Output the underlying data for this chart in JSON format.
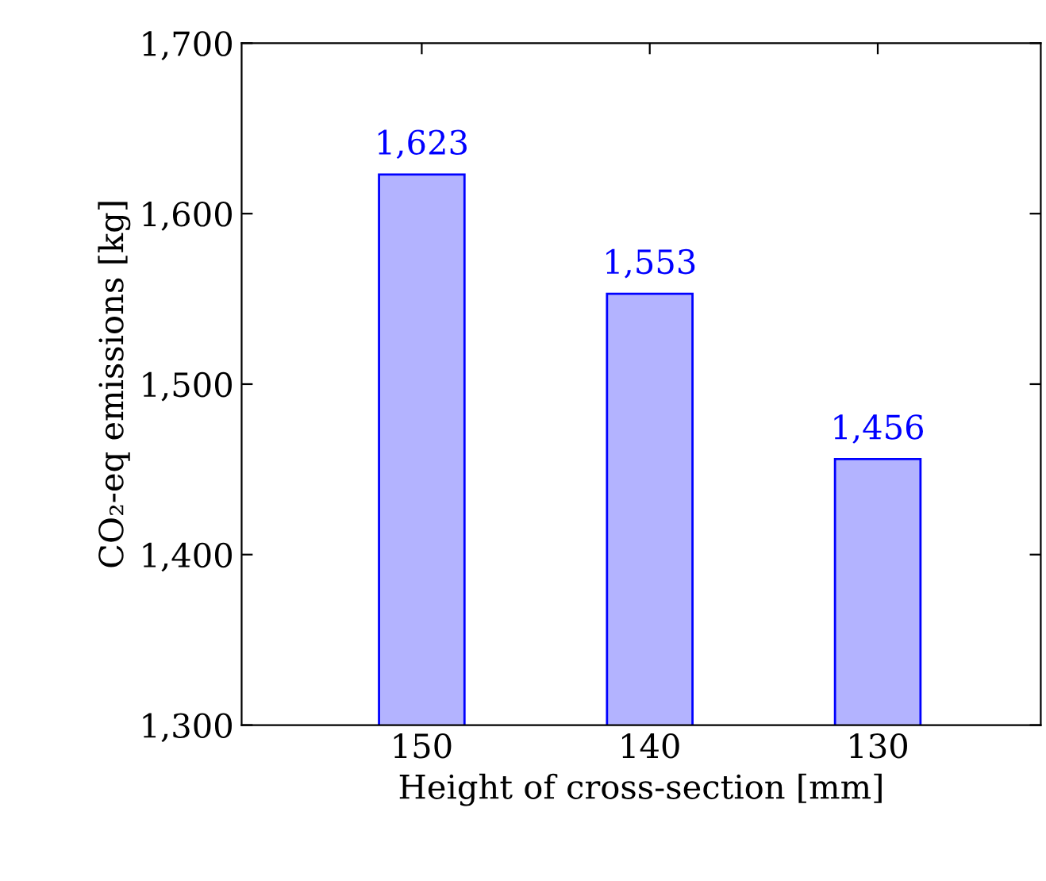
{
  "chart_data": {
    "type": "bar",
    "xlabel": "Height of cross-section [mm]",
    "ylabel": "CO₂-eq emissions [kg]",
    "categories": [
      "150",
      "140",
      "130"
    ],
    "series": [
      {
        "color": "#b3b3ff",
        "values": [
          1623,
          1553,
          1456
        ],
        "value_labels": [
          "1,623",
          "1,553",
          "1,456"
        ]
      }
    ],
    "ylim": [
      1300,
      1700
    ],
    "yticks": [
      {
        "value": 1300,
        "label": "1,300"
      },
      {
        "value": 1400,
        "label": "1,400"
      },
      {
        "value": 1500,
        "label": "1,500"
      },
      {
        "value": 1600,
        "label": "1,600"
      },
      {
        "value": 1700,
        "label": "1,700"
      }
    ],
    "grid": false
  }
}
